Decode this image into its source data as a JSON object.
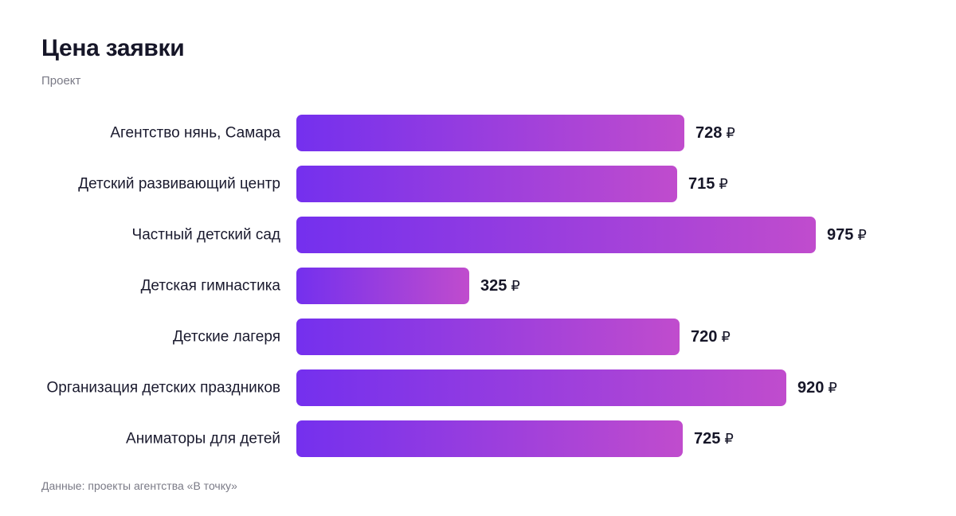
{
  "header": {
    "title": "Цена заявки",
    "subtitle": "Проект"
  },
  "footer": {
    "source": "Данные: проекты агентства «В точку»"
  },
  "colors": {
    "bar_gradient_start": "#7430ee",
    "bar_gradient_end": "#c04ccd"
  },
  "chart_data": {
    "type": "bar",
    "orientation": "horizontal",
    "title": "Цена заявки",
    "subtitle": "Проект",
    "categories": [
      "Агентство нянь, Самара",
      "Детский развивающий центр",
      "Частный детский сад",
      "Детская гимнастика",
      "Детские лагеря",
      "Организация детских праздников",
      "Аниматоры для детей"
    ],
    "values": [
      728,
      715,
      975,
      325,
      720,
      920,
      725
    ],
    "value_suffix": "₽",
    "grid": false,
    "legend": "none"
  }
}
